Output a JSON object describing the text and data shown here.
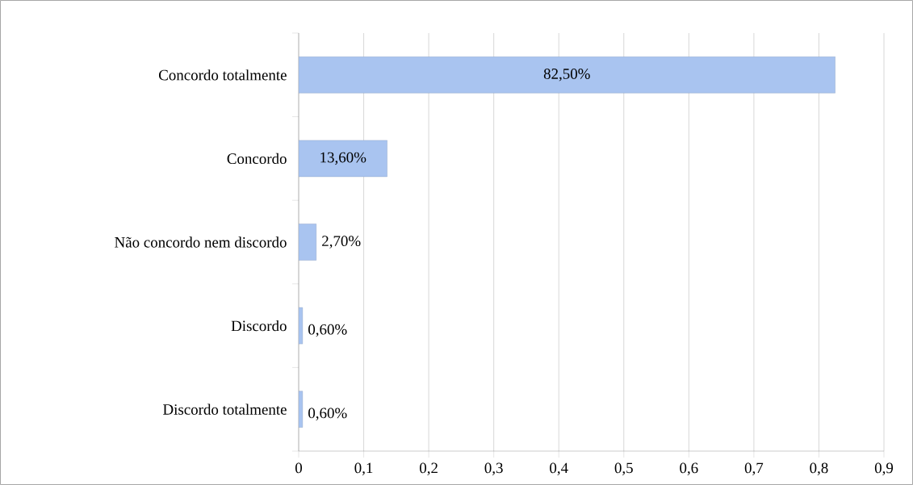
{
  "chart_data": {
    "type": "bar",
    "orientation": "horizontal",
    "categories": [
      "Concordo totalmente",
      "Concordo",
      "Não concordo nem discordo",
      "Discordo",
      "Discordo totalmente"
    ],
    "values": [
      0.825,
      0.136,
      0.027,
      0.006,
      0.006
    ],
    "value_labels": [
      "82,50%",
      "13,60%",
      "2,70%",
      "0,60%",
      "0,60%"
    ],
    "color": "#a9c4f0",
    "xlim": [
      0,
      0.9
    ],
    "xticks": [
      0,
      {
        "value": 0.1,
        "label": "0,1"
      },
      {
        "value": 0.2,
        "label": "0,2"
      },
      {
        "value": 0.3,
        "label": "0,3"
      },
      {
        "value": 0.4,
        "label": "0,4"
      },
      {
        "value": 0.5,
        "label": "0,5"
      },
      {
        "value": 0.6,
        "label": "0,6"
      },
      {
        "value": 0.7,
        "label": "0,7"
      },
      {
        "value": 0.8,
        "label": "0,8"
      },
      {
        "value": 0.9,
        "label": "0,9"
      }
    ],
    "grid": "x"
  }
}
